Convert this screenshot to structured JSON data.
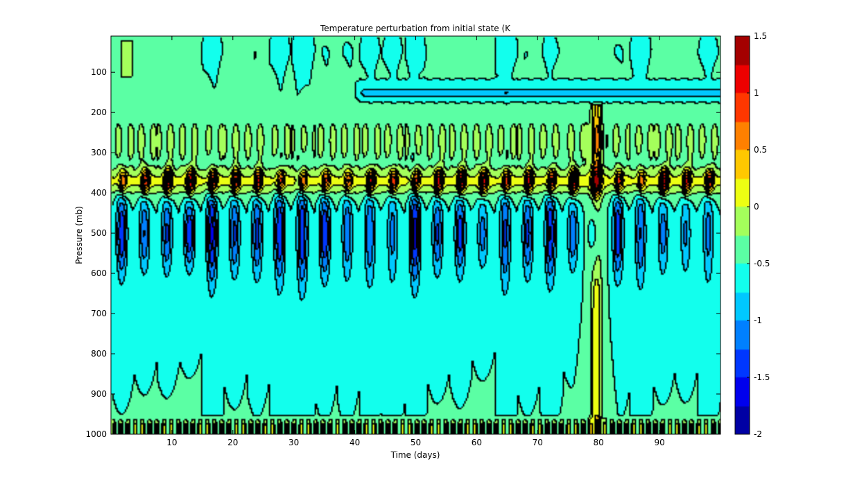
{
  "chart_data": {
    "type": "heatmap",
    "title": "Temperature perturbation from initial state (K",
    "xlabel": "Time (days)",
    "ylabel": "Pressure (mb)",
    "xlim": [
      0,
      100
    ],
    "ylim": [
      1000,
      10
    ],
    "x_ticks": [
      10,
      20,
      30,
      40,
      50,
      60,
      70,
      80,
      90
    ],
    "y_ticks": [
      100,
      200,
      300,
      400,
      500,
      600,
      700,
      800,
      900,
      1000
    ],
    "colorbar": {
      "range": [
        -2,
        1.5
      ],
      "ticks": [
        1.5,
        1,
        0.5,
        0,
        -0.5,
        -1,
        -1.5,
        -2
      ],
      "colormap": "jet",
      "contour_levels": [
        -2,
        -1.75,
        -1.5,
        -1.25,
        -1,
        -0.75,
        -0.5,
        -0.25,
        0,
        0.25,
        0.5,
        0.75,
        1,
        1.25,
        1.5
      ]
    },
    "features": {
      "background_value": -0.5,
      "warm_band_pressure": 370,
      "warm_band_peak": 1.25,
      "cold_band_pressure": 500,
      "cold_band_min": -1.5,
      "oscillation_period_days": 3.7,
      "upper_cold_layer": {
        "pressure": 150,
        "value": -1.0,
        "start_day": 40
      },
      "surface_layer": {
        "pressure_above": 950,
        "value": 0
      },
      "warm_column": {
        "day": 79.5,
        "value": 0.25
      }
    }
  }
}
